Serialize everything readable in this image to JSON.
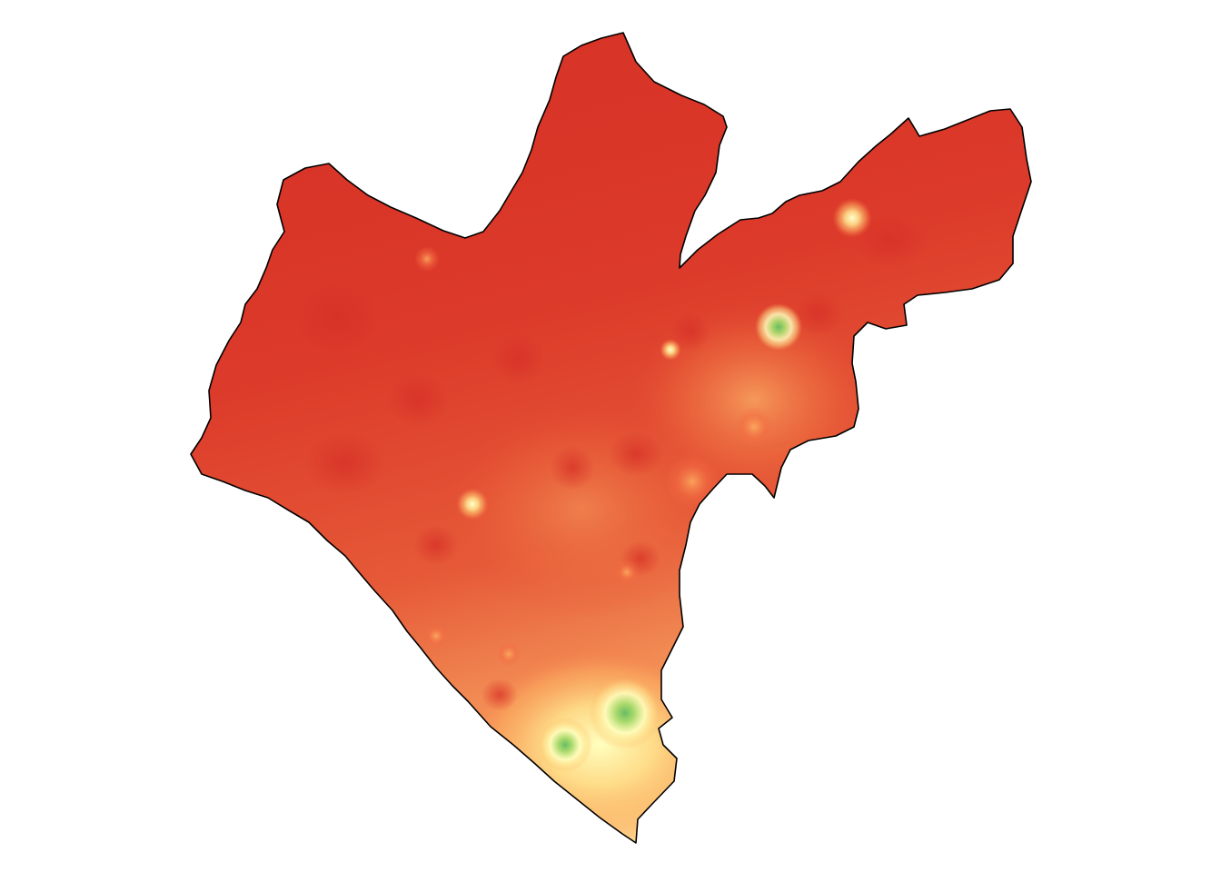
{
  "map": {
    "colors": {
      "high_red": "#d73027",
      "red_mid": "#e34a33",
      "orange": "#f46d43",
      "light_orange": "#fdae61",
      "pale_yellow": "#fee08b",
      "cream": "#ffffbf",
      "light_green": "#a6d96a",
      "green": "#66bd63",
      "border": "#000000",
      "background": "#ffffff"
    },
    "hotspots": [
      {
        "name": "nw-cluster-1",
        "tone": "cream"
      },
      {
        "name": "center-1",
        "tone": "cream"
      },
      {
        "name": "center-2",
        "tone": "light_orange"
      },
      {
        "name": "east-green",
        "tone": "green"
      },
      {
        "name": "east-2",
        "tone": "cream"
      },
      {
        "name": "ne-1",
        "tone": "cream"
      },
      {
        "name": "south-green-1",
        "tone": "green"
      },
      {
        "name": "south-green-2",
        "tone": "green"
      }
    ]
  }
}
